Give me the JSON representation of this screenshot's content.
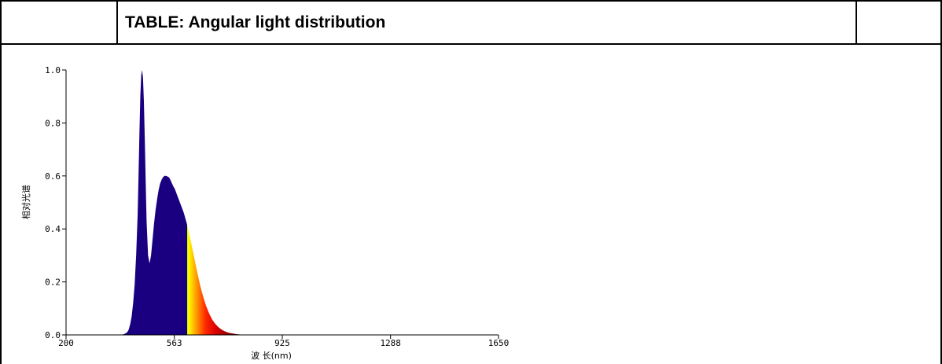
{
  "table": {
    "title": "TABLE: Angular light distribution"
  },
  "chart_data": {
    "type": "area",
    "xlabel": "波 长(nm)",
    "ylabel": "相对光谱",
    "xlim": [
      200,
      1650
    ],
    "ylim": [
      0,
      1.0
    ],
    "x_ticks": [
      "200",
      "563",
      "925",
      "1288",
      "1650"
    ],
    "y_ticks": [
      "0.0",
      "0.2",
      "0.4",
      "0.6",
      "0.8",
      "1.0"
    ],
    "grid": false,
    "legend": "none",
    "fill": "visible-spectrum color gradient under curve",
    "series": [
      {
        "x": [
          380,
          395,
          405,
          410,
          415,
          420,
          425,
          430,
          435,
          440,
          443,
          446,
          449,
          452,
          455,
          458,
          461,
          464,
          467,
          470,
          475,
          480,
          485,
          490,
          495,
          500,
          505,
          510,
          515,
          520,
          525,
          530,
          535,
          540,
          545,
          550,
          555,
          560,
          565,
          570,
          575,
          580,
          585,
          590,
          595,
          600,
          605,
          610,
          615,
          620,
          630,
          640,
          650,
          660,
          670,
          680,
          690,
          700,
          710,
          720,
          730,
          740,
          750,
          760,
          770,
          780,
          790,
          800,
          820,
          850
        ],
        "y": [
          0.0,
          0.003,
          0.01,
          0.02,
          0.04,
          0.07,
          0.12,
          0.19,
          0.3,
          0.45,
          0.6,
          0.76,
          0.9,
          0.98,
          1.0,
          0.97,
          0.88,
          0.74,
          0.58,
          0.43,
          0.3,
          0.27,
          0.3,
          0.36,
          0.42,
          0.47,
          0.51,
          0.545,
          0.57,
          0.585,
          0.595,
          0.6,
          0.6,
          0.598,
          0.595,
          0.585,
          0.572,
          0.56,
          0.55,
          0.535,
          0.52,
          0.505,
          0.49,
          0.475,
          0.46,
          0.44,
          0.42,
          0.395,
          0.37,
          0.345,
          0.29,
          0.235,
          0.185,
          0.143,
          0.108,
          0.08,
          0.058,
          0.042,
          0.03,
          0.021,
          0.015,
          0.01,
          0.007,
          0.005,
          0.003,
          0.002,
          0.001,
          0.0005,
          0.0002,
          0.0
        ]
      }
    ]
  }
}
